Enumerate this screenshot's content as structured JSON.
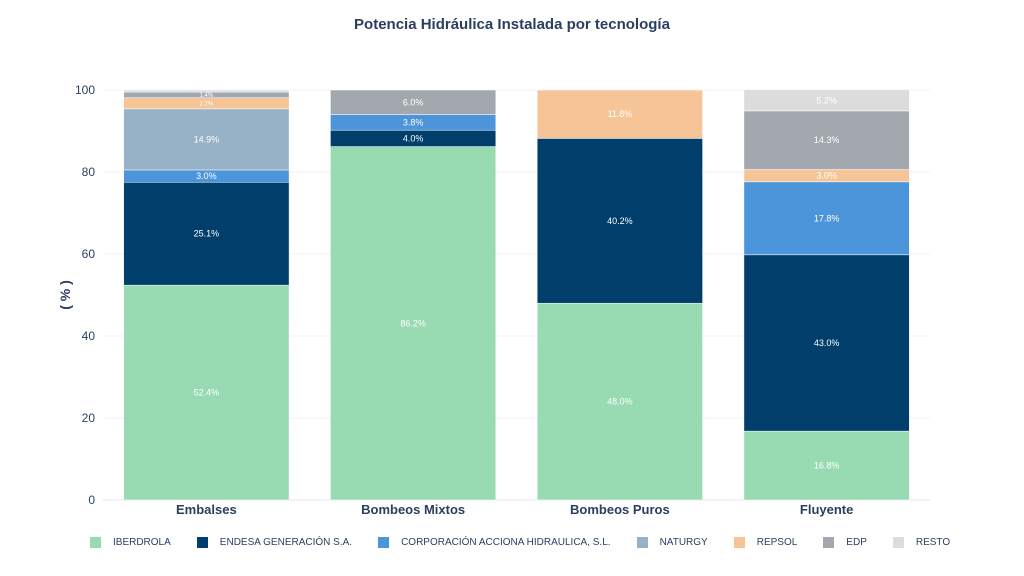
{
  "chart_data": {
    "type": "bar",
    "stacked": true,
    "title": "Potencia Hidráulica Instalada por tecnología",
    "xlabel": "",
    "ylabel": "( % )",
    "ylim": [
      0,
      100
    ],
    "yticks": [
      "0",
      "20",
      "40",
      "60",
      "80",
      "100"
    ],
    "categories": [
      "Embalses",
      "Bombeos Mixtos",
      "Bombeos Puros",
      "Fluyente"
    ],
    "series": [
      {
        "name": "IBERDROLA",
        "color": "#98dbb3",
        "values": [
          52.4,
          86.2,
          48.0,
          16.8
        ]
      },
      {
        "name": "ENDESA GENERACIÓN S.A.",
        "color": "#003f6c",
        "values": [
          25.1,
          4.0,
          40.2,
          43.0
        ]
      },
      {
        "name": "CORPORACIÓN ACCIONA HIDRAULICA, S.L.",
        "color": "#4c95da",
        "values": [
          3.0,
          3.8,
          0,
          17.8
        ]
      },
      {
        "name": "NATURGY",
        "color": "#97b1c6",
        "values": [
          14.9,
          0,
          0,
          0
        ]
      },
      {
        "name": "REPSOL",
        "color": "#f5c598",
        "values": [
          2.7,
          0,
          11.8,
          3.0
        ]
      },
      {
        "name": "EDP",
        "color": "#a3a8ae",
        "values": [
          1.4,
          6.0,
          0,
          14.3
        ]
      },
      {
        "name": "RESTO",
        "color": "#dcdcdc",
        "values": [
          0.5,
          0,
          0,
          5.2
        ]
      }
    ],
    "legend_position": "bottom",
    "grid": true
  }
}
